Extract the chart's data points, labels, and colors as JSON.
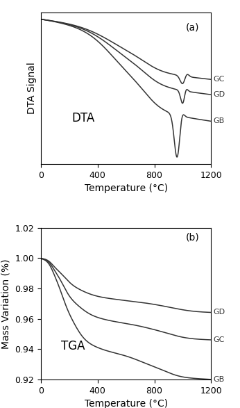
{
  "dta_xlim": [
    0,
    1200
  ],
  "dta_xticks": [
    0,
    400,
    800,
    1200
  ],
  "dta_xlabel": "Temperature (°C)",
  "dta_ylabel": "DTA Signal",
  "dta_label": "(a)",
  "dta_text": "DTA",
  "tga_xlim": [
    0,
    1200
  ],
  "tga_ylim": [
    0.92,
    1.02
  ],
  "tga_yticks": [
    0.92,
    0.94,
    0.96,
    0.98,
    1.0,
    1.02
  ],
  "tga_xticks": [
    0,
    400,
    800,
    1200
  ],
  "tga_xlabel": "Temperature (°C)",
  "tga_ylabel": "Mass Variation (%)",
  "tga_label": "(b)",
  "tga_text": "TGA",
  "line_color": "#333333",
  "background_color": "#ffffff",
  "label_fontsize": 10,
  "tick_fontsize": 9,
  "panel_label_fontsize": 10
}
